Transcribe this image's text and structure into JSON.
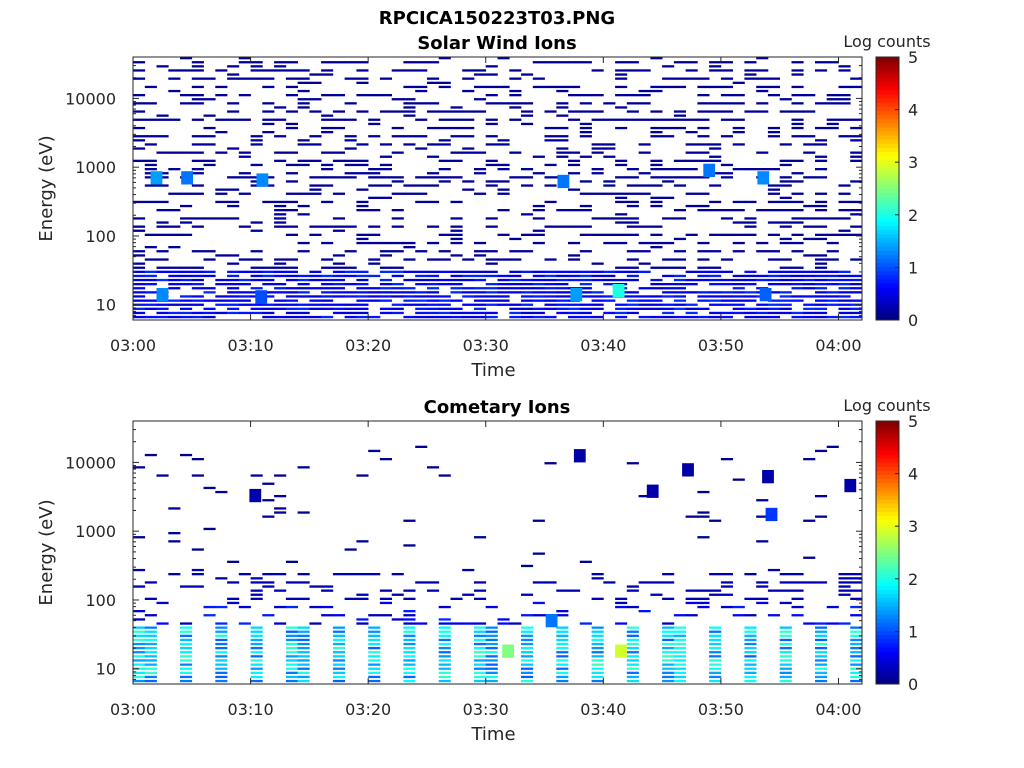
{
  "figure": {
    "title": "RPCICA150223T03.PNG"
  },
  "panels": [
    {
      "subtitle": "Solar Wind Ions",
      "colorbar_label": "Log counts"
    },
    {
      "subtitle": "Cometary Ions",
      "colorbar_label": "Log counts"
    }
  ],
  "chart_data": [
    {
      "type": "heatmap",
      "title": "Solar Wind Ions",
      "xlabel": "Time",
      "ylabel": "Energy (eV)",
      "x_ticks": [
        "03:00",
        "03:10",
        "03:20",
        "03:30",
        "03:40",
        "03:50",
        "04:00"
      ],
      "x_tick_minutes": [
        0,
        10,
        20,
        30,
        40,
        50,
        60
      ],
      "xlim_minutes": [
        0,
        62
      ],
      "y_scale": "log",
      "y_ticks": [
        "10",
        "100",
        "1000",
        "10000"
      ],
      "y_tick_values": [
        10,
        100,
        1000,
        10000
      ],
      "ylim": [
        6,
        40000
      ],
      "colorbar": {
        "label": "Log counts",
        "ticks": [
          "0",
          "1",
          "2",
          "3",
          "4",
          "5"
        ],
        "range": [
          0,
          5
        ],
        "colormap": "jet"
      },
      "pattern": {
        "seed": 11,
        "upper_fill_probability": 0.42,
        "upper_level": 0.12,
        "low_energy_band_eV": [
          6,
          30
        ],
        "low_energy_fill_probability": 0.8,
        "low_energy_level": 0.35
      },
      "features": [
        {
          "time_min": 2.0,
          "energy_eV": 700,
          "level": 1.4
        },
        {
          "time_min": 4.6,
          "energy_eV": 700,
          "level": 1.2
        },
        {
          "time_min": 11.0,
          "energy_eV": 650,
          "level": 1.3
        },
        {
          "time_min": 36.6,
          "energy_eV": 620,
          "level": 1.2
        },
        {
          "time_min": 49.0,
          "energy_eV": 900,
          "level": 1.2
        },
        {
          "time_min": 53.6,
          "energy_eV": 700,
          "level": 1.3
        },
        {
          "time_min": 2.5,
          "energy_eV": 14,
          "level": 1.3
        },
        {
          "time_min": 10.9,
          "energy_eV": 13,
          "level": 1.0
        },
        {
          "time_min": 37.7,
          "energy_eV": 14,
          "level": 1.4
        },
        {
          "time_min": 41.3,
          "energy_eV": 16,
          "level": 2.0
        },
        {
          "time_min": 53.8,
          "energy_eV": 14,
          "level": 1.1
        }
      ]
    },
    {
      "type": "heatmap",
      "title": "Cometary Ions",
      "xlabel": "Time",
      "ylabel": "Energy (eV)",
      "x_ticks": [
        "03:00",
        "03:10",
        "03:20",
        "03:30",
        "03:40",
        "03:50",
        "04:00"
      ],
      "x_tick_minutes": [
        0,
        10,
        20,
        30,
        40,
        50,
        60
      ],
      "xlim_minutes": [
        0,
        62
      ],
      "y_scale": "log",
      "y_ticks": [
        "10",
        "100",
        "1000",
        "10000"
      ],
      "y_tick_values": [
        10,
        100,
        1000,
        10000
      ],
      "ylim": [
        6,
        40000
      ],
      "colorbar": {
        "label": "Log counts",
        "ticks": [
          "0",
          "1",
          "2",
          "3",
          "4",
          "5"
        ],
        "range": [
          0,
          5
        ],
        "colormap": "jet"
      },
      "pattern": {
        "seed": 29,
        "sweep_period_min": 3.2,
        "band_eV": [
          6,
          40
        ],
        "band_level": 1.8,
        "mid_band_eV": [
          40,
          300
        ],
        "mid_fill_probability": 0.3,
        "mid_level": 0.25,
        "sparse_band_eV": [
          300,
          20000
        ],
        "sparse_fill_probability": 0.03,
        "sparse_level": 0.1
      },
      "features": [
        {
          "time_min": 38.0,
          "energy_eV": 12500,
          "level": 0.2
        },
        {
          "time_min": 47.2,
          "energy_eV": 7800,
          "level": 0.2
        },
        {
          "time_min": 54.0,
          "energy_eV": 6200,
          "level": 0.2
        },
        {
          "time_min": 61.0,
          "energy_eV": 4600,
          "level": 0.2
        },
        {
          "time_min": 10.4,
          "energy_eV": 3300,
          "level": 0.2
        },
        {
          "time_min": 44.2,
          "energy_eV": 3800,
          "level": 0.2
        },
        {
          "time_min": 54.3,
          "energy_eV": 1750,
          "level": 0.9
        },
        {
          "time_min": 41.5,
          "energy_eV": 18,
          "level": 2.9
        },
        {
          "time_min": 31.9,
          "energy_eV": 18,
          "level": 2.5
        },
        {
          "time_min": 35.6,
          "energy_eV": 50,
          "level": 1.2
        }
      ]
    }
  ]
}
